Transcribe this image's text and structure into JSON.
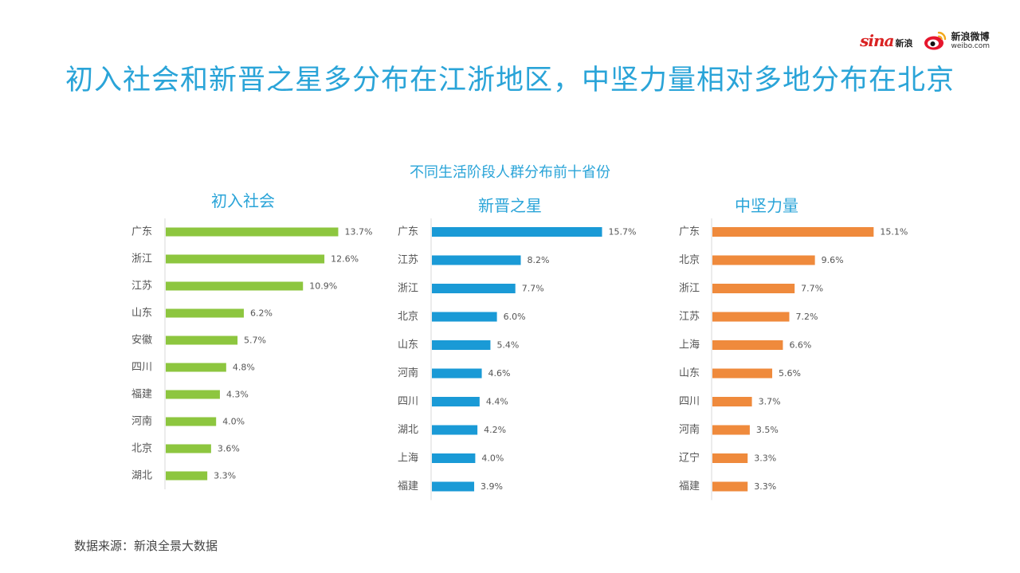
{
  "brand": {
    "sina_word": "sina",
    "sina_cn": "新浪",
    "weibo_cn": "新浪微博",
    "weibo_url": "weibo.com"
  },
  "title": "初入社会和新晋之星多分布在江浙地区，中坚力量相对多地分布在北京",
  "source": "数据来源：新浪全景大数据",
  "chart_data": {
    "type": "bar",
    "orientation": "horizontal",
    "title": "不同生活阶段人群分布前十省份",
    "unit": "%",
    "panels": [
      {
        "title": "初入社会",
        "color": "#8dc63f",
        "categories": [
          "广东",
          "浙江",
          "江苏",
          "山东",
          "安徽",
          "四川",
          "福建",
          "河南",
          "北京",
          "湖北"
        ],
        "values": [
          13.7,
          12.6,
          10.9,
          6.2,
          5.7,
          4.8,
          4.3,
          4.0,
          3.6,
          3.3
        ],
        "labels": [
          "13.7%",
          "12.6%",
          "10.9%",
          "6.2%",
          "5.7%",
          "4.8%",
          "4.3%",
          "4.0%",
          "3.6%",
          "3.3%"
        ]
      },
      {
        "title": "新晋之星",
        "color": "#1a9ad6",
        "categories": [
          "广东",
          "江苏",
          "浙江",
          "北京",
          "山东",
          "河南",
          "四川",
          "湖北",
          "上海",
          "福建"
        ],
        "values": [
          15.7,
          8.2,
          7.7,
          6.0,
          5.4,
          4.6,
          4.4,
          4.2,
          4.0,
          3.9
        ],
        "labels": [
          "15.7%",
          "8.2%",
          "7.7%",
          "6.0%",
          "5.4%",
          "4.6%",
          "4.4%",
          "4.2%",
          "4.0%",
          "3.9%"
        ]
      },
      {
        "title": "中坚力量",
        "color": "#ef8a3c",
        "categories": [
          "广东",
          "北京",
          "浙江",
          "江苏",
          "上海",
          "山东",
          "四川",
          "河南",
          "辽宁",
          "福建"
        ],
        "values": [
          15.1,
          9.6,
          7.7,
          7.2,
          6.6,
          5.6,
          3.7,
          3.5,
          3.3,
          3.3
        ],
        "labels": [
          "15.1%",
          "9.6%",
          "7.7%",
          "7.2%",
          "6.6%",
          "5.6%",
          "3.7%",
          "3.5%",
          "3.3%",
          "3.3%"
        ]
      }
    ]
  }
}
